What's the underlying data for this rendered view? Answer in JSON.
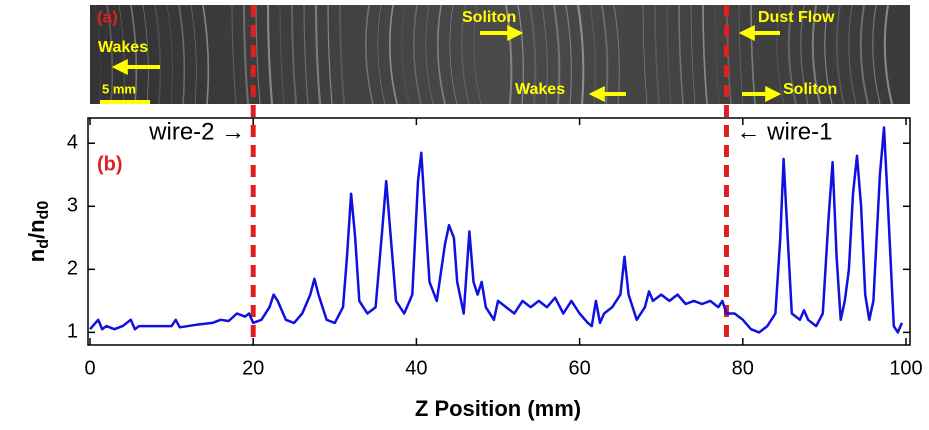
{
  "chart_data": {
    "type": "line",
    "panel_a": {
      "label": "(a)",
      "texts": [
        "Wakes",
        "5 mm",
        "Soliton",
        "Wakes",
        "Dust Flow",
        "Soliton"
      ]
    },
    "panel_label": "(b)",
    "xlabel": "Z Position (mm)",
    "ylabel": [
      "n",
      "d",
      "/n",
      "d0"
    ],
    "xlim": [
      0,
      100
    ],
    "ylim": [
      0.8,
      4.4
    ],
    "xticks": [
      0,
      20,
      40,
      60,
      80,
      100
    ],
    "yticks": [
      1,
      2,
      3,
      4
    ],
    "vlines": [
      {
        "x": 20,
        "label": "wire-2 →"
      },
      {
        "x": 78,
        "label": "← wire-1"
      }
    ],
    "vline_color": "#e02020",
    "series": [
      {
        "color": "#1010e0",
        "x": [
          0,
          1,
          1.5,
          2,
          3,
          4,
          5,
          5.5,
          6,
          8,
          10,
          10.5,
          11,
          13,
          15,
          16,
          17,
          18,
          19,
          19.5,
          20,
          21,
          22,
          22.5,
          23,
          24,
          25,
          26,
          27,
          27.5,
          28,
          29,
          30,
          31,
          31.5,
          32,
          32.5,
          33,
          34,
          35,
          35.8,
          36.3,
          36.8,
          37.5,
          38.5,
          39.5,
          40.2,
          40.6,
          41,
          41.6,
          42.5,
          43.5,
          44,
          44.6,
          45,
          45.8,
          46.5,
          47,
          47.5,
          48,
          48.5,
          49.5,
          50,
          51,
          52,
          53,
          54,
          55,
          56,
          57,
          58,
          59,
          60,
          61,
          61.5,
          62,
          62.5,
          63,
          64,
          65,
          65.5,
          66,
          67,
          68,
          68.5,
          69,
          70,
          71,
          72,
          73,
          74,
          75,
          76,
          77,
          77.5,
          78,
          79,
          80,
          81,
          82,
          83,
          84,
          84.6,
          85,
          85.5,
          86,
          87,
          87.5,
          88,
          89,
          89.8,
          90.5,
          91,
          91.5,
          92,
          92.5,
          93,
          93.5,
          94,
          94.5,
          95,
          95.5,
          96,
          96.8,
          97.3,
          97.8,
          98.5,
          99,
          99.5
        ],
        "values": [
          1.05,
          1.2,
          1.05,
          1.1,
          1.05,
          1.1,
          1.2,
          1.05,
          1.1,
          1.1,
          1.1,
          1.2,
          1.08,
          1.12,
          1.15,
          1.2,
          1.18,
          1.3,
          1.25,
          1.3,
          1.15,
          1.2,
          1.4,
          1.6,
          1.5,
          1.2,
          1.15,
          1.3,
          1.6,
          1.85,
          1.6,
          1.2,
          1.15,
          1.4,
          2.2,
          3.2,
          2.5,
          1.5,
          1.3,
          1.4,
          2.6,
          3.4,
          2.6,
          1.5,
          1.3,
          1.6,
          3.4,
          3.85,
          3.0,
          1.8,
          1.5,
          2.4,
          2.7,
          2.5,
          1.8,
          1.3,
          2.6,
          1.8,
          1.6,
          1.8,
          1.4,
          1.2,
          1.5,
          1.4,
          1.3,
          1.5,
          1.4,
          1.5,
          1.4,
          1.55,
          1.3,
          1.5,
          1.3,
          1.15,
          1.1,
          1.5,
          1.15,
          1.3,
          1.4,
          1.6,
          2.2,
          1.6,
          1.2,
          1.4,
          1.65,
          1.5,
          1.6,
          1.5,
          1.6,
          1.45,
          1.5,
          1.45,
          1.5,
          1.4,
          1.5,
          1.3,
          1.3,
          1.2,
          1.05,
          1.0,
          1.1,
          1.3,
          2.5,
          3.75,
          2.5,
          1.3,
          1.2,
          1.35,
          1.2,
          1.1,
          1.3,
          2.8,
          3.7,
          2.2,
          1.2,
          1.5,
          2.0,
          3.2,
          3.8,
          3.0,
          1.6,
          1.2,
          1.5,
          3.5,
          4.25,
          3.0,
          1.1,
          1.0,
          1.15
        ]
      }
    ]
  }
}
